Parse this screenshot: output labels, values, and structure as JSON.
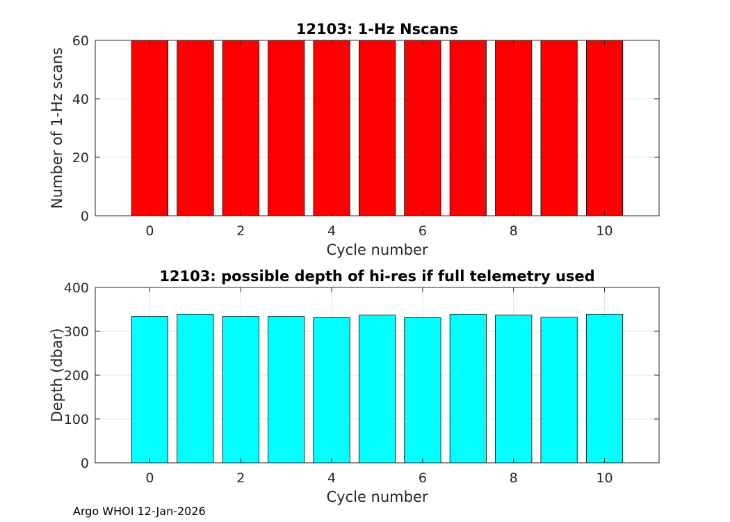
{
  "chart_data": [
    {
      "type": "bar",
      "title": "12103: 1-Hz Nscans",
      "xlabel": "Cycle number",
      "ylabel": "Number of 1-Hz scans",
      "x": [
        0,
        1,
        2,
        3,
        4,
        5,
        6,
        7,
        8,
        9,
        10
      ],
      "values": [
        60,
        60,
        60,
        60,
        60,
        60,
        60,
        60,
        60,
        60,
        60
      ],
      "color": "#ff0000",
      "xlim": [
        -1.2,
        11.2
      ],
      "ylim": [
        0,
        60
      ],
      "xticks": [
        0,
        2,
        4,
        6,
        8,
        10
      ],
      "yticks": [
        0,
        20,
        40,
        60
      ],
      "grid": true
    },
    {
      "type": "bar",
      "title": "12103: possible depth of hi-res if full telemetry used",
      "xlabel": "Cycle number",
      "ylabel": "Depth (dbar)",
      "x": [
        0,
        1,
        2,
        3,
        4,
        5,
        6,
        7,
        8,
        9,
        10
      ],
      "values": [
        334,
        339,
        334,
        334,
        331,
        337,
        331,
        339,
        337,
        332,
        339
      ],
      "color": "#00ffff",
      "xlim": [
        -1.2,
        11.2
      ],
      "ylim": [
        0,
        400
      ],
      "xticks": [
        0,
        2,
        4,
        6,
        8,
        10
      ],
      "yticks": [
        0,
        100,
        200,
        300,
        400
      ],
      "grid": true
    }
  ],
  "footer": "Argo WHOI 12-Jan-2026"
}
